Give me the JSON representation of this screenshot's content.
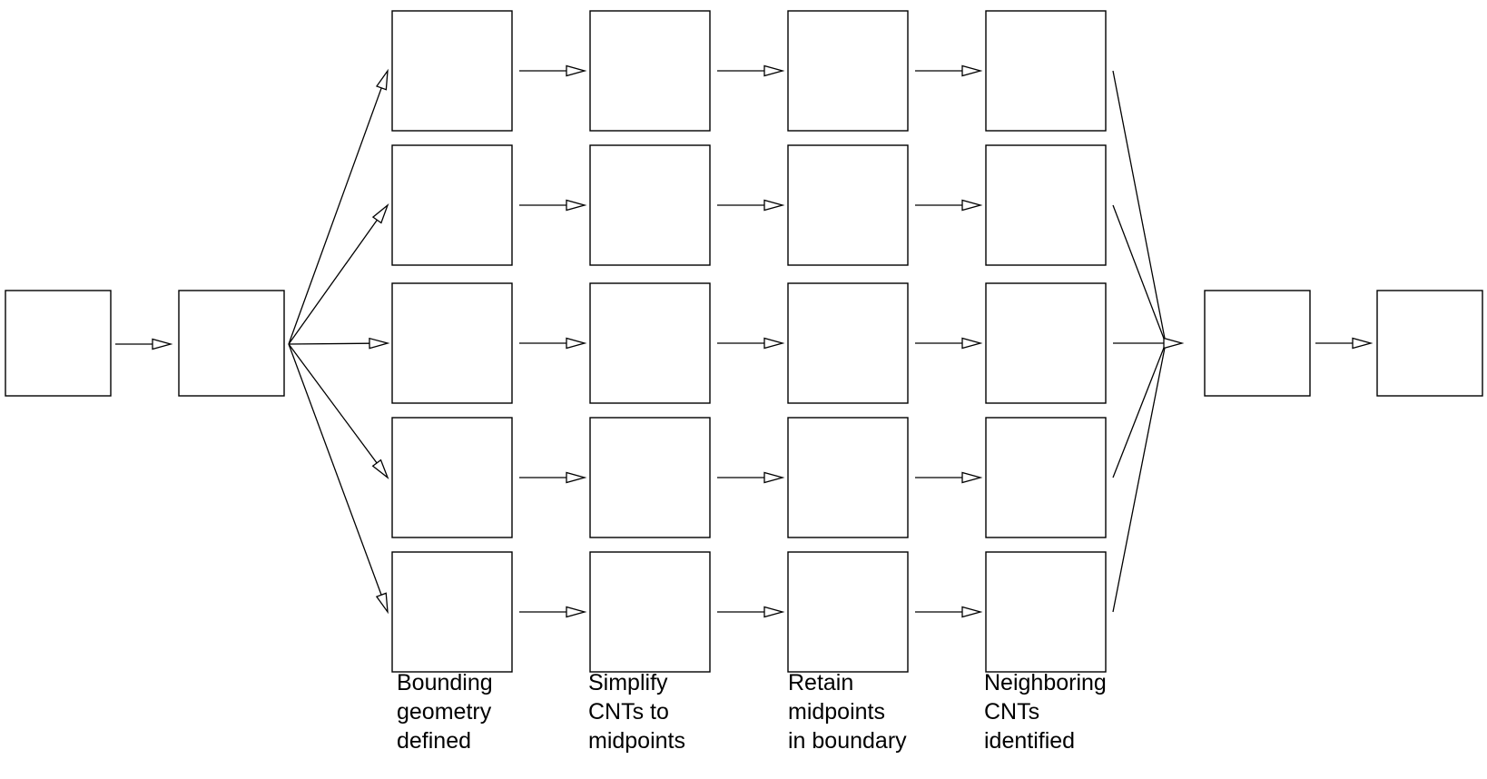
{
  "colors": {
    "background": "#ffffff",
    "frame": "#000000",
    "input_cnts": "#000000",
    "cnts": "#ff0000",
    "midpoints": "#ff0000",
    "boundary": "#00e000",
    "target_cnt": "#00cc00",
    "neighbor_result": "#0000dd",
    "cluster_palette": [
      "#0000ff",
      "#00cc00",
      "#ff9900",
      "#ff00ff",
      "#ffee00"
    ]
  },
  "geometries": [
    "square",
    "capsule",
    "band",
    "circle",
    "rectangle"
  ],
  "captions": [
    {
      "id": "bounding",
      "text": "Bounding\ngeometry\ndefined"
    },
    {
      "id": "simplify",
      "text": "Simplify\nCNTs to\nmidpoints"
    },
    {
      "id": "retain",
      "text": "Retain\nmidpoints\nin boundary"
    },
    {
      "id": "neighboring",
      "text": "Neighboring\nCNTs\nidentified"
    }
  ]
}
